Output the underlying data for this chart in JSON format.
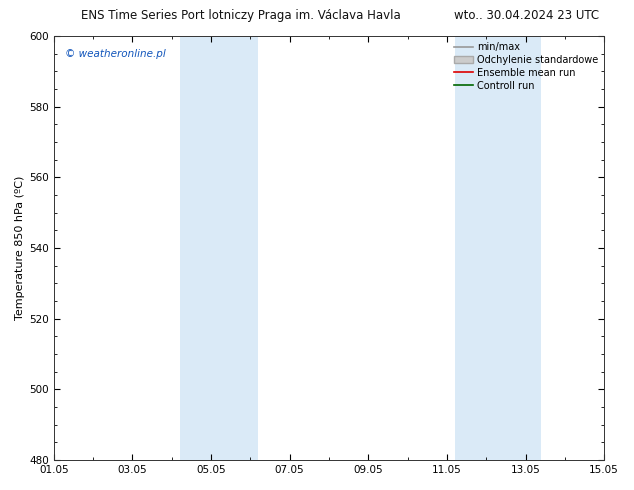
{
  "title_left": "ENS Time Series Port lotniczy Praga im. Václava Havla",
  "title_right": "wto.. 30.04.2024 23 UTC",
  "ylabel": "Temperature 850 hPa (ºC)",
  "ylim": [
    480,
    600
  ],
  "yticks": [
    480,
    500,
    520,
    540,
    560,
    580,
    600
  ],
  "xlim_start": 0,
  "xlim_end": 14,
  "xtick_labels": [
    "01.05",
    "03.05",
    "05.05",
    "07.05",
    "09.05",
    "11.05",
    "13.05",
    "15.05"
  ],
  "xtick_positions": [
    0,
    2,
    4,
    6,
    8,
    10,
    12,
    14
  ],
  "shaded_bands": [
    {
      "xmin": 3.2,
      "xmax": 5.2,
      "color": "#daeaf7"
    },
    {
      "xmin": 10.2,
      "xmax": 12.4,
      "color": "#daeaf7"
    }
  ],
  "watermark": "© weatheronline.pl",
  "watermark_color": "#1155bb",
  "legend_items": [
    {
      "label": "min/max",
      "color": "#999999",
      "lw": 1.2,
      "type": "line"
    },
    {
      "label": "Odchylenie standardowe",
      "color": "#cccccc",
      "edgecolor": "#aaaaaa",
      "type": "fill"
    },
    {
      "label": "Ensemble mean run",
      "color": "#dd0000",
      "lw": 1.2,
      "type": "line"
    },
    {
      "label": "Controll run",
      "color": "#006600",
      "lw": 1.2,
      "type": "line"
    }
  ],
  "bg_color": "#ffffff",
  "plot_bg_color": "#ffffff",
  "title_fontsize": 8.5,
  "axis_label_fontsize": 8,
  "tick_fontsize": 7.5,
  "legend_fontsize": 7,
  "watermark_fontsize": 7.5
}
